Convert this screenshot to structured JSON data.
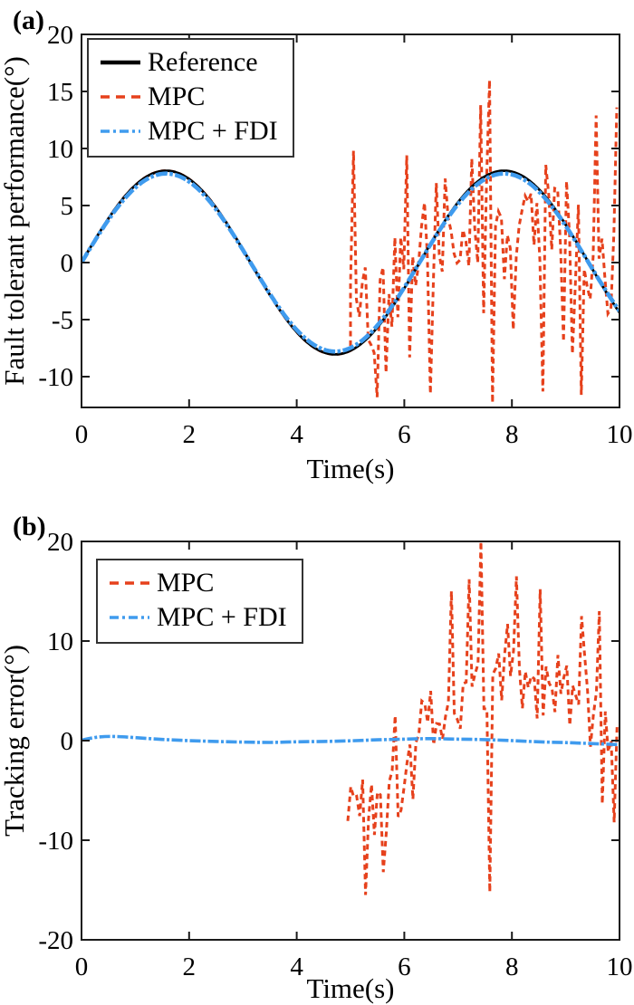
{
  "page": {
    "background": "#ffffff",
    "axis_color": "#1a1a1a",
    "text_color": "#000000"
  },
  "chart_data": [
    {
      "type": "line",
      "panel_label": "(a)",
      "xlabel": "Time(s)",
      "ylabel": "Fault tolerant performance(°)",
      "xlim": [
        0,
        10
      ],
      "ylim": [
        -12.7,
        20
      ],
      "xticks": [
        0,
        2,
        4,
        6,
        8,
        10
      ],
      "yticks": [
        20,
        15,
        10,
        5,
        0,
        -5,
        -10
      ],
      "grid": false,
      "fault_time": 5,
      "legend": {
        "position": "top-left",
        "entries": [
          {
            "label": "Reference",
            "color": "#000000",
            "dash": "none",
            "width": 4.5
          },
          {
            "label": "MPC",
            "color": "#e6411c",
            "dash": "10 7",
            "width": 3.5
          },
          {
            "label": "MPC + FDI",
            "color": "#3f9bee",
            "dash": "10 4 3 4",
            "width": 3.5
          }
        ]
      },
      "series": [
        {
          "name": "MPC",
          "type": "sine_then_noise",
          "pre_fault_amplitude": 8.05,
          "fault_time": 5,
          "t_end": 10,
          "step": 0.055,
          "seed": 42,
          "noise_center_amplitude": 2.5,
          "noise_spread": 9,
          "spike_prob": 0.05,
          "spike_gain": 1.65,
          "clip": [
            -12.45,
            16.2
          ],
          "marquee_points": [
            [
              5.06,
              9.8
            ],
            [
              5.5,
              -11.8
            ],
            [
              6.05,
              9.4
            ],
            [
              6.5,
              -11.5
            ],
            [
              7.44,
              13.8
            ],
            [
              7.56,
              16.0
            ],
            [
              7.64,
              -12.3
            ],
            [
              8.6,
              -11.3
            ],
            [
              9.3,
              -11.6
            ],
            [
              9.58,
              12.9
            ],
            [
              9.94,
              13.6
            ]
          ],
          "color": "#e6411c",
          "width": 3,
          "dash": "6 4.5"
        },
        {
          "name": "Reference",
          "type": "sine",
          "amplitude": 8.05,
          "t_end": 10,
          "color": "#000000",
          "width": 2.8,
          "dash": "none"
        },
        {
          "name": "MPC + FDI",
          "type": "sine",
          "amplitude": 7.8,
          "t_end": 10,
          "color": "#3f9bee",
          "width": 4.6,
          "dash": "13 2.5 3.5 2.5"
        }
      ]
    },
    {
      "type": "line",
      "panel_label": "(b)",
      "xlabel": "Time(s)",
      "ylabel": "Tracking error(°)",
      "xlim": [
        0,
        10
      ],
      "ylim": [
        -20,
        20
      ],
      "xticks": [
        0,
        2,
        4,
        6,
        8,
        10
      ],
      "yticks": [
        20,
        10,
        0,
        -10,
        -20
      ],
      "grid": false,
      "fault_time": 5,
      "legend": {
        "position": "top-left",
        "entries": [
          {
            "label": "MPC",
            "color": "#e6411c",
            "dash": "10 7",
            "width": 3.5
          },
          {
            "label": "MPC + FDI",
            "color": "#3f9bee",
            "dash": "10 4 3 4",
            "width": 3.5
          }
        ]
      },
      "series": [
        {
          "name": "MPC",
          "type": "trend_noise",
          "t_start": 4.95,
          "t_end": 10,
          "step": 0.055,
          "seed": 1337,
          "trend_anchors": [
            [
              4.95,
              -4
            ],
            [
              5.1,
              -7
            ],
            [
              7.7,
              8
            ],
            [
              10,
              1
            ]
          ],
          "noise_spread": 6.5,
          "spike_prob": 0.06,
          "spike_gain": 1.6,
          "clip": [
            -16.3,
            20.2
          ],
          "marquee_points": [
            [
              5.3,
              -15.5
            ],
            [
              5.6,
              -13.2
            ],
            [
              6.9,
              15.0
            ],
            [
              7.2,
              16.2
            ],
            [
              7.45,
              20.0
            ],
            [
              7.6,
              -15.2
            ],
            [
              8.1,
              16.5
            ],
            [
              8.55,
              15.2
            ],
            [
              9.3,
              12.5
            ],
            [
              9.6,
              13.0
            ],
            [
              9.9,
              -8.2
            ]
          ],
          "color": "#e6411c",
          "width": 3,
          "dash": "6 4.5"
        },
        {
          "name": "MPC + FDI",
          "type": "smooth_points",
          "points": [
            [
              0,
              0.05
            ],
            [
              0.3,
              0.35
            ],
            [
              0.6,
              0.42
            ],
            [
              1,
              0.3
            ],
            [
              1.5,
              0.12
            ],
            [
              2,
              0.0
            ],
            [
              2.5,
              -0.08
            ],
            [
              3,
              -0.15
            ],
            [
              3.5,
              -0.18
            ],
            [
              4,
              -0.12
            ],
            [
              4.5,
              -0.08
            ],
            [
              5,
              -0.02
            ],
            [
              5.5,
              0.08
            ],
            [
              6,
              0.15
            ],
            [
              6.5,
              0.2
            ],
            [
              7,
              0.15
            ],
            [
              7.5,
              0.1
            ],
            [
              8,
              0.0
            ],
            [
              8.5,
              -0.12
            ],
            [
              9,
              -0.2
            ],
            [
              9.5,
              -0.3
            ],
            [
              10,
              -0.4
            ]
          ],
          "color": "#3f9bee",
          "width": 3.6,
          "dash": "12 2.5 3 2.5"
        }
      ]
    }
  ]
}
